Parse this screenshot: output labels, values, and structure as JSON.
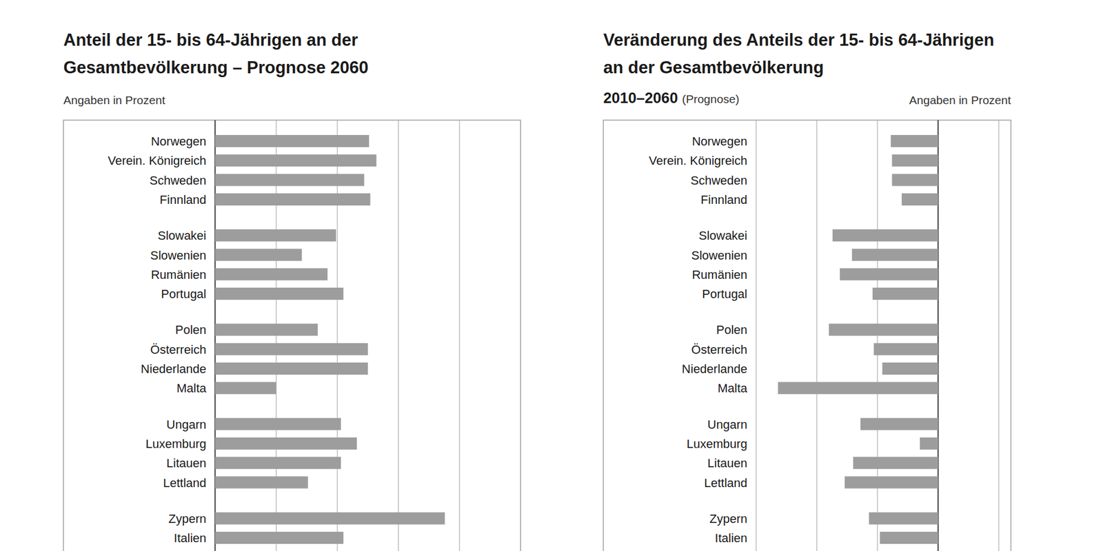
{
  "chart_data": [
    {
      "type": "bar",
      "orientation": "horizontal",
      "title": "Anteil der 15- bis 64-Jährigen an der Gesamtbevölkerung – Prognose 2060",
      "unit_label": "Angaben in Prozent",
      "categories": [
        "Norwegen",
        "Verein. Königreich",
        "Schweden",
        "Finnland",
        "Slowakei",
        "Slowenien",
        "Rumänien",
        "Portugal",
        "Polen",
        "Österreich",
        "Niederlande",
        "Malta",
        "Ungarn",
        "Luxemburg",
        "Litauen",
        "Lettland",
        "Zypern",
        "Italien"
      ],
      "values": [
        62.6,
        63.2,
        62.2,
        62.7,
        59.9,
        57.1,
        59.2,
        60.5,
        58.4,
        62.5,
        62.5,
        55.0,
        60.3,
        61.6,
        60.3,
        57.6,
        68.8,
        60.5
      ],
      "color": "#9d9d9d",
      "xlim": [
        50,
        75
      ],
      "xticks": [
        50,
        55,
        60,
        65,
        70,
        75
      ],
      "grid": true,
      "tick_labels": "y"
    },
    {
      "type": "bar",
      "orientation": "horizontal",
      "title": "Veränderung des Anteils der 15- bis 64-Jährigen an der Gesamtbevölkerung",
      "subtitle": "2010–2060",
      "note": "(Prognose)",
      "unit_label": "Angaben in Prozent",
      "categories": [
        "Norwegen",
        "Verein. Königreich",
        "Schweden",
        "Finnland",
        "Slowakei",
        "Slowenien",
        "Rumänien",
        "Portugal",
        "Polen",
        "Österreich",
        "Niederlande",
        "Malta",
        "Ungarn",
        "Luxemburg",
        "Litauen",
        "Lettland",
        "Zypern",
        "Italien"
      ],
      "values": [
        -3.9,
        -3.8,
        -3.8,
        -3.0,
        -8.7,
        -7.1,
        -8.1,
        -5.4,
        -9.0,
        -5.3,
        -4.6,
        -13.2,
        -6.4,
        -1.5,
        -7.0,
        -7.7,
        -5.7,
        -4.8
      ],
      "color": "#9d9d9d",
      "xlim": [
        -15,
        6
      ],
      "xticks": [
        -15,
        -10,
        -5,
        0,
        5
      ],
      "grid": true,
      "tick_labels": "y"
    }
  ]
}
